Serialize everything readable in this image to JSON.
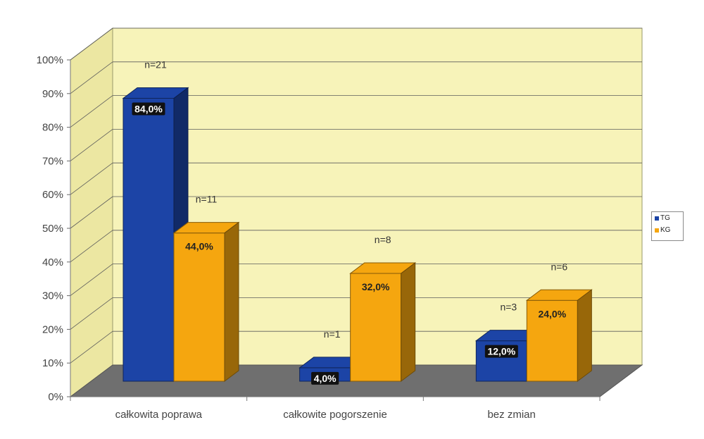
{
  "chart_data": {
    "type": "bar",
    "categories": [
      "całkowita poprawa",
      "całkowite pogorszenie",
      "bez zmian"
    ],
    "series": [
      {
        "name": "TG",
        "values": [
          84,
          4,
          12
        ],
        "value_labels": [
          "84,0%",
          "4,0%",
          "12,0%"
        ],
        "count_labels": [
          "n=21",
          "n=1",
          "n=3"
        ],
        "color": "#1c44a6"
      },
      {
        "name": "KG",
        "values": [
          44,
          32,
          24
        ],
        "value_labels": [
          "44,0%",
          "32,0%",
          "24,0%"
        ],
        "count_labels": [
          "n=11",
          "n=8",
          "n=6"
        ],
        "color": "#f5a60f"
      }
    ],
    "y_ticks": [
      "0%",
      "10%",
      "20%",
      "30%",
      "40%",
      "50%",
      "60%",
      "70%",
      "80%",
      "90%",
      "100%"
    ],
    "ylim": [
      0,
      100
    ],
    "grid": true,
    "legend_position": "right",
    "title": "",
    "xlabel": "",
    "ylabel": "",
    "colors": {
      "back_wall": "#f7f3b9",
      "side_wall": "#ece7a2",
      "floor": "#6f6f6f"
    }
  }
}
